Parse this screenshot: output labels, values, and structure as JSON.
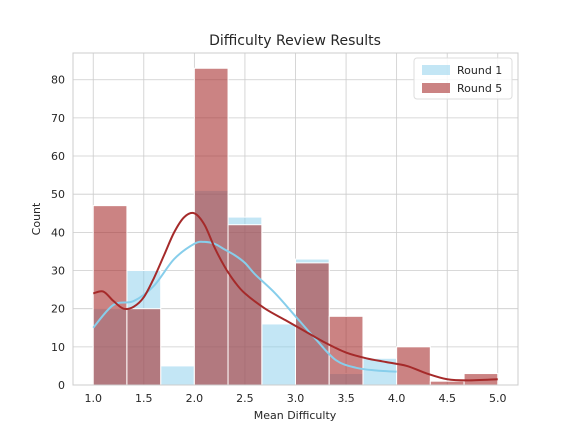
{
  "chart_data": {
    "type": "bar",
    "title": "Difficulty Review Results",
    "xlabel": "Mean Difficulty",
    "ylabel": "Count",
    "xlim": [
      0.8,
      5.2
    ],
    "ylim": [
      0,
      87
    ],
    "xticks": [
      1.0,
      1.5,
      2.0,
      2.5,
      3.0,
      3.5,
      4.0,
      4.5,
      5.0
    ],
    "xtick_labels": [
      "1.0",
      "1.5",
      "2.0",
      "2.5",
      "3.0",
      "3.5",
      "4.0",
      "4.5",
      "5.0"
    ],
    "yticks": [
      0,
      10,
      20,
      30,
      40,
      50,
      60,
      70,
      80
    ],
    "ytick_labels": [
      "0",
      "10",
      "20",
      "30",
      "40",
      "50",
      "60",
      "70",
      "80"
    ],
    "grid": true,
    "legend_position": "top-right",
    "series": [
      {
        "name": "Round 1",
        "color": "#87ceeb",
        "bins": [
          {
            "x0": 1.0,
            "x1": 1.333,
            "count": 20
          },
          {
            "x0": 1.333,
            "x1": 1.667,
            "count": 30
          },
          {
            "x0": 1.667,
            "x1": 2.0,
            "count": 5
          },
          {
            "x0": 2.0,
            "x1": 2.333,
            "count": 51
          },
          {
            "x0": 2.333,
            "x1": 2.667,
            "count": 44
          },
          {
            "x0": 2.667,
            "x1": 3.0,
            "count": 16
          },
          {
            "x0": 3.0,
            "x1": 3.333,
            "count": 33
          },
          {
            "x0": 3.333,
            "x1": 3.667,
            "count": 3
          },
          {
            "x0": 3.667,
            "x1": 4.0,
            "count": 7
          }
        ],
        "kde": {
          "x": [
            1.0,
            1.2,
            1.4,
            1.6,
            1.8,
            2.0,
            2.1,
            2.2,
            2.3,
            2.4,
            2.5,
            2.6,
            2.8,
            3.0,
            3.2,
            3.4,
            3.6,
            3.8,
            4.0
          ],
          "y": [
            15,
            21,
            22,
            26,
            33,
            37,
            37.5,
            37,
            35.5,
            34,
            32,
            29,
            24,
            18,
            12,
            6.5,
            4.5,
            3.8,
            3.5
          ]
        }
      },
      {
        "name": "Round 5",
        "color": "#a52a2a",
        "bins": [
          {
            "x0": 1.0,
            "x1": 1.333,
            "count": 47
          },
          {
            "x0": 1.333,
            "x1": 1.667,
            "count": 20
          },
          {
            "x0": 1.667,
            "x1": 2.0,
            "count": 0
          },
          {
            "x0": 2.0,
            "x1": 2.333,
            "count": 83
          },
          {
            "x0": 2.333,
            "x1": 2.667,
            "count": 42
          },
          {
            "x0": 2.667,
            "x1": 3.0,
            "count": 0
          },
          {
            "x0": 3.0,
            "x1": 3.333,
            "count": 32
          },
          {
            "x0": 3.333,
            "x1": 3.667,
            "count": 18
          },
          {
            "x0": 3.667,
            "x1": 4.0,
            "count": 0
          },
          {
            "x0": 4.0,
            "x1": 4.333,
            "count": 10
          },
          {
            "x0": 4.333,
            "x1": 4.667,
            "count": 1
          },
          {
            "x0": 4.667,
            "x1": 5.0,
            "count": 3
          }
        ],
        "kde": {
          "x": [
            1.0,
            1.1,
            1.2,
            1.3,
            1.4,
            1.5,
            1.6,
            1.7,
            1.8,
            1.9,
            2.0,
            2.1,
            2.2,
            2.3,
            2.4,
            2.5,
            2.7,
            2.9,
            3.1,
            3.3,
            3.5,
            3.7,
            3.9,
            4.1,
            4.3,
            4.5,
            4.7,
            5.0
          ],
          "y": [
            24,
            24.5,
            22,
            20,
            20.5,
            23,
            28,
            34,
            40,
            44,
            45,
            42,
            36,
            31,
            27,
            24,
            20,
            17,
            14,
            11,
            8.5,
            7,
            6,
            5,
            3,
            1.5,
            1.2,
            1.5
          ]
        }
      }
    ]
  }
}
